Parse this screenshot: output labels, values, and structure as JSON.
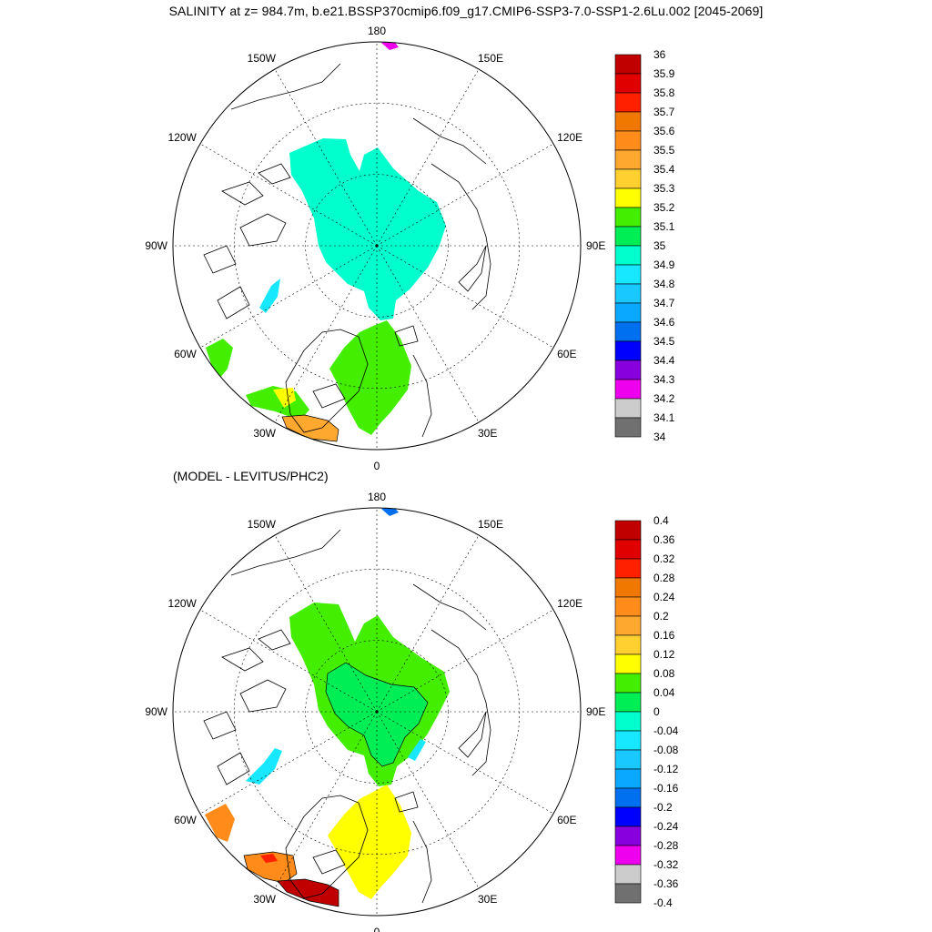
{
  "title": "SALINITY at z= 984.7m, b.e21.BSSP370cmip6.f09_g17.CMIP6-SSP3-7.0-SSP1-2.6Lu.002 [2045-2069]",
  "subtitle": "(MODEL - LEVITUS/PHC2)",
  "lon_labels": [
    "180",
    "150E",
    "120E",
    "90E",
    "60E",
    "30E",
    "0",
    "30W",
    "60W",
    "90W",
    "120W",
    "150W"
  ],
  "top_colorbar": {
    "labels": [
      "36",
      "35.9",
      "35.8",
      "35.7",
      "35.6",
      "35.5",
      "35.4",
      "35.3",
      "35.2",
      "35.1",
      "35",
      "34.9",
      "34.8",
      "34.7",
      "34.6",
      "34.5",
      "34.4",
      "34.3",
      "34.2",
      "34.1",
      "34"
    ]
  },
  "bottom_colorbar": {
    "labels": [
      "0.4",
      "0.36",
      "0.32",
      "0.28",
      "0.24",
      "0.2",
      "0.16",
      "0.12",
      "0.08",
      "0.04",
      "0",
      "-0.04",
      "-0.08",
      "-0.12",
      "-0.16",
      "-0.2",
      "-0.24",
      "-0.28",
      "-0.32",
      "-0.36",
      "-0.4"
    ]
  },
  "palette": [
    "#c00000",
    "#e00000",
    "#ff2000",
    "#f07800",
    "#ff8c1a",
    "#ffa830",
    "#ffd030",
    "#ffff00",
    "#44ee00",
    "#00ee55",
    "#00ffcc",
    "#18e8ff",
    "#18c8ff",
    "#0aa8ff",
    "#0070f0",
    "#0000ff",
    "#8800dd",
    "#ee00ee",
    "#cccccc",
    "#707070"
  ],
  "colors": {
    "coast": "#000000",
    "grid": "#000000",
    "top_field_arctic": "#00ffcc",
    "top_field_nordic": "#44ee00",
    "top_field_baffin": "#18e8ff",
    "bottom_field_arctic": "#44ee00",
    "bottom_field_nordic": "#ffff00"
  }
}
